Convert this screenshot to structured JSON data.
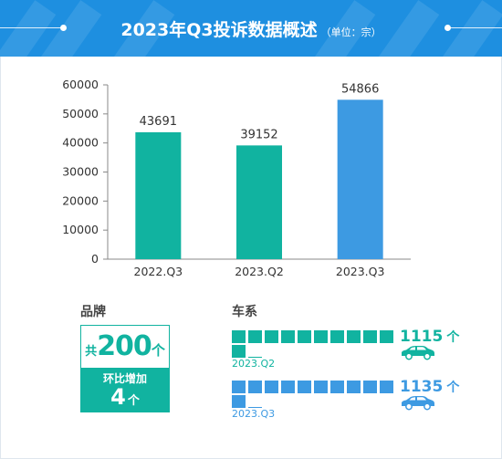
{
  "header": {
    "title": "2023年Q3投诉数据概述",
    "unit_note": "（单位：宗）"
  },
  "colors": {
    "header_bg": "#1e8fe0",
    "teal": "#11b3a0",
    "blue": "#3d9ae2"
  },
  "chart_data": {
    "type": "bar",
    "categories": [
      "2022.Q3",
      "2023.Q2",
      "2023.Q3"
    ],
    "values": [
      43691,
      39152,
      54866
    ],
    "bar_colors": [
      "#11b3a0",
      "#11b3a0",
      "#3d9ae2"
    ],
    "ylim": [
      0,
      60000
    ],
    "yticks": [
      0,
      10000,
      20000,
      30000,
      40000,
      50000,
      60000
    ],
    "grid": false
  },
  "brand": {
    "label": "品牌",
    "prefix": "共",
    "total": "200",
    "total_unit": "个",
    "change_label": "环比增加",
    "change_value": "4",
    "change_unit": "个"
  },
  "series": {
    "label": "车系",
    "rows": [
      {
        "quarter": "2023.Q2",
        "value": "1115",
        "unit": "个",
        "color": "#11b3a0",
        "icon": "car-icon"
      },
      {
        "quarter": "2023.Q3",
        "value": "1135",
        "unit": "个",
        "color": "#3d9ae2",
        "icon": "car-icon"
      }
    ]
  }
}
